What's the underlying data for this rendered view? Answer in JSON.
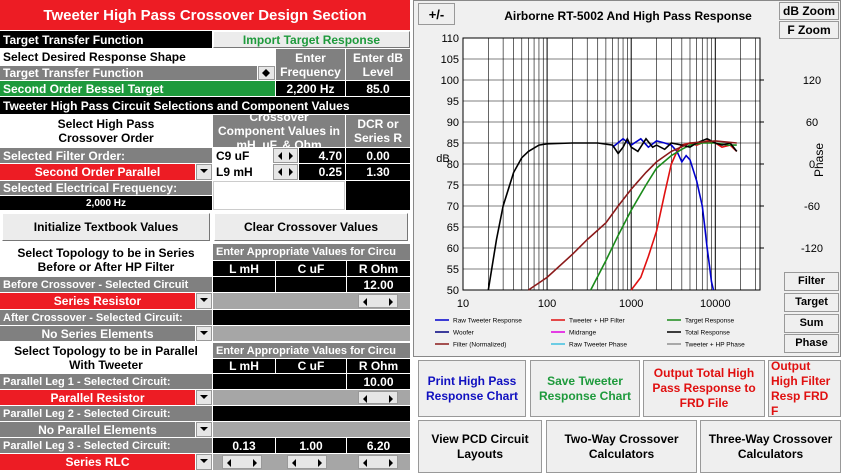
{
  "header": {
    "title": "Tweeter High Pass Crossover Design Section"
  },
  "target": {
    "label": "Target Transfer Function",
    "import_button": "Import Target Response",
    "select_label": "Select Desired Response Shape",
    "freq_header": "Enter Frequency",
    "db_header": "Enter dB Level",
    "list_label": "Target Transfer Function",
    "selection": "Second Order Bessel Target",
    "frequency": "2,200 Hz",
    "db_level": "85.0"
  },
  "circuit": {
    "label": "Tweeter High Pass Circuit Selections and Component Values",
    "order_header": "Select High Pass Crossover Order",
    "values_header": "Crossover Component Values in mH, uF, & Ohm",
    "dcr_header": "DCR or Series R",
    "order_label": "Selected Filter Order:",
    "order": "Second Order Parallel",
    "components": [
      {
        "name": "C9  uF",
        "value": "4.70",
        "dcr": "0.00"
      },
      {
        "name": "L9 mH",
        "value": "0.25",
        "dcr": "1.30"
      }
    ],
    "freq_label": "Selected Electrical Frequency:",
    "frequency": "2,000 Hz"
  },
  "buttons": {
    "initialize": "Initialize Textbook Values",
    "clear": "Clear Crossover Values"
  },
  "series_topology": {
    "header": "Select Topology to be in Series Before or After HP Filter",
    "values_header": "Enter Appropriate Values for Circu",
    "columns": [
      "L mH",
      "C uF",
      "R Ohm"
    ],
    "before_label": "Before Crossover - Selected Circuit",
    "before_circuit": "Series Resistor",
    "before_r": "12.00",
    "after_label": "After Crossover - Selected Circuit:",
    "after_circuit": "No Series Elements"
  },
  "parallel_topology": {
    "header": "Select Topology to be in Parallel With Tweeter",
    "values_header": "Enter Appropriate Values for Circu",
    "columns": [
      "L mH",
      "C uF",
      "R Ohm"
    ],
    "leg1_label": "Parallel Leg 1 - Selected Circuit:",
    "leg1_circuit": "Parallel Resistor",
    "leg1_r": "10.00",
    "leg2_label": "Parallel Leg 2 - Selected Circuit:",
    "leg2_circuit": "No Parallel Elements",
    "leg3_label": "Parallel Leg 3 - Selected Circuit:",
    "leg3_circuit": "Series RLC",
    "leg3_l": "0.13",
    "leg3_c": "1.00",
    "leg3_r": "6.20"
  },
  "chart_controls": {
    "sign": "+/-",
    "db_zoom": "dB Zoom",
    "f_zoom": "F Zoom",
    "filter": "Filter",
    "target": "Target",
    "sum": "Sum",
    "phase": "Phase"
  },
  "actions": {
    "print": "Print High Pass Response Chart",
    "save": "Save Tweeter Response Chart",
    "output_total": "Output Total High Pass Response to FRD File",
    "output_filter": "Output High Filter Resp FRD F",
    "view_pcd": "View PCD Circuit Layouts",
    "two_way": "Two-Way Crossover Calculators",
    "three_way": "Three-Way Crossover Calculators"
  },
  "chart_data": {
    "type": "line",
    "title": "Airborne RT-5002  And High Pass Response",
    "ylabel": "dB",
    "y2label": "Phase",
    "log_x": true,
    "grid": true,
    "xlim": [
      10,
      34000
    ],
    "xticks": [
      10,
      100,
      1000,
      10000
    ],
    "ylim": [
      50,
      110
    ],
    "yticks": [
      50,
      55,
      60,
      65,
      70,
      75,
      80,
      85,
      90,
      95,
      100,
      105,
      110
    ],
    "y2lim": [
      -180,
      180
    ],
    "y2ticks": [
      -120,
      -60,
      0,
      60,
      120
    ],
    "series": [
      {
        "name": "Raw Tweeter Response",
        "color": "#0000cc",
        "x": [
          600,
          800,
          1000,
          1300,
          1600,
          2000,
          2500,
          3000,
          3500,
          4000,
          4500,
          5000,
          6000,
          7000,
          7500,
          8000,
          8500,
          9000,
          9500
        ],
        "values": [
          84,
          86,
          84.5,
          86,
          84,
          85.5,
          85,
          84.5,
          83,
          80.5,
          82,
          81,
          76,
          70,
          65,
          60,
          56,
          52,
          50
        ]
      },
      {
        "name": "Tweeter + HP Filter",
        "color": "#e01010",
        "x": [
          1000,
          1300,
          1600,
          2000,
          2500,
          3000,
          3500,
          4000,
          5000,
          6000,
          8000,
          10000,
          12000,
          15000,
          18000
        ],
        "values": [
          50,
          53,
          58,
          64,
          73,
          80,
          83,
          84.5,
          85,
          84.5,
          85.5,
          85,
          84,
          84.5,
          83
        ]
      },
      {
        "name": "Target Response",
        "color": "#1a8a1a",
        "x": [
          330,
          500,
          700,
          1000,
          1500,
          2000,
          3000,
          4000,
          5000,
          7000,
          10000,
          14000,
          18000
        ],
        "values": [
          50,
          57,
          63,
          69,
          75,
          79,
          82,
          83.5,
          84.5,
          85,
          85,
          84.5,
          84.5
        ]
      },
      {
        "name": "Woofer",
        "color": "#000080",
        "x": [],
        "values": []
      },
      {
        "name": "Midrange",
        "color": "#e000e0",
        "x": [],
        "values": []
      },
      {
        "name": "Total Response",
        "color": "#000000",
        "x": [
          20,
          25,
          30,
          40,
          50,
          60,
          80,
          100,
          200,
          400,
          600,
          700,
          800,
          900,
          1000,
          1200,
          1500,
          1800,
          2000,
          2500,
          3000,
          4000,
          5000,
          6000,
          8000,
          10000,
          12000,
          15000,
          18000
        ],
        "values": [
          50,
          62,
          70,
          78,
          81.5,
          83,
          84.5,
          84.8,
          85,
          85,
          84.5,
          82.5,
          84,
          86,
          84,
          83,
          86,
          84,
          84.5,
          83.5,
          85,
          84.5,
          84,
          85,
          86,
          85,
          84.5,
          85,
          83
        ]
      },
      {
        "name": "Filter (Normalized)",
        "color": "#8b1a1a",
        "x": [
          60,
          100,
          200,
          300,
          500,
          700,
          1000,
          1500,
          2000,
          3000,
          5000,
          10000,
          18000
        ],
        "values": [
          50,
          53,
          58.5,
          62,
          66,
          70,
          74,
          78,
          80.5,
          83,
          85,
          85.5,
          85
        ]
      },
      {
        "name": "Raw Tweeter Phase",
        "color": "#40c0e0",
        "x": [],
        "values": []
      },
      {
        "name": "Tweeter + HP Phase",
        "color": "#909090",
        "x": [],
        "values": []
      }
    ]
  }
}
